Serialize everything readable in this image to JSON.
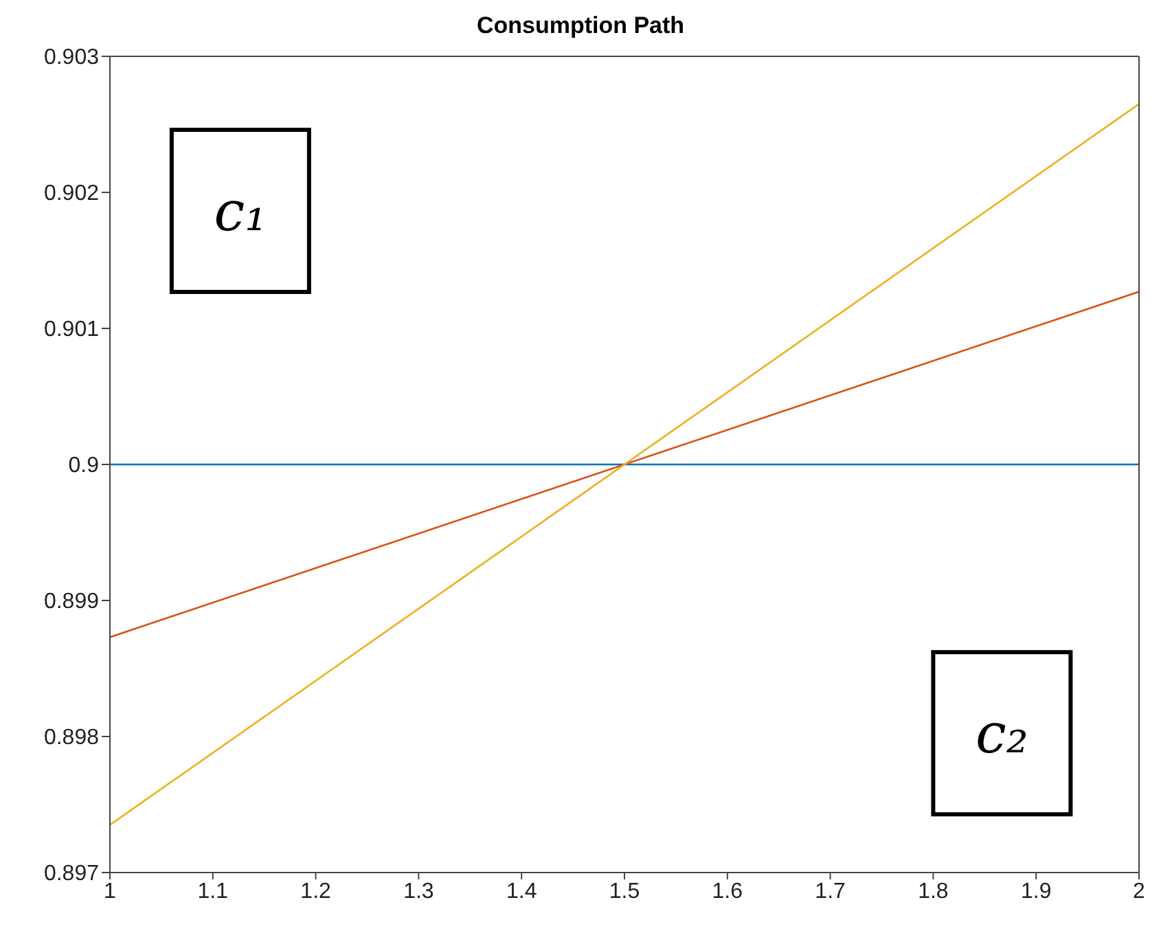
{
  "chart_data": {
    "type": "line",
    "title": "Consumption Path",
    "x": [
      1,
      2
    ],
    "series": [
      {
        "color": "#0072bd",
        "values": [
          0.9,
          0.9
        ]
      },
      {
        "color": "#d95319",
        "values": [
          0.89873,
          0.90127
        ]
      },
      {
        "color": "#edb120",
        "values": [
          0.89735,
          0.90265
        ]
      }
    ],
    "xlim": [
      1,
      2
    ],
    "xticks": [
      1,
      1.1,
      1.2,
      1.3,
      1.4,
      1.5,
      1.6,
      1.7,
      1.8,
      1.9,
      2
    ],
    "ylim": [
      0.897,
      0.903
    ],
    "yticks": [
      0.897,
      0.898,
      0.899,
      0.9,
      0.901,
      0.902,
      0.903
    ],
    "annotations": [
      "c₁",
      "c₂"
    ],
    "grid": false,
    "marker": "none",
    "line_style": "solid"
  }
}
